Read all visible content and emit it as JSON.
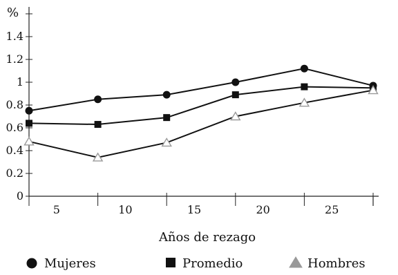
{
  "chart_data": {
    "type": "line",
    "title": "",
    "xlabel": "Años de rezago",
    "ylabel": "%",
    "x": [
      3,
      8,
      13,
      18,
      23,
      28
    ],
    "xticks": [
      "5",
      "10",
      "15",
      "20",
      "25"
    ],
    "xtick_values": [
      5,
      10,
      15,
      20,
      25
    ],
    "yticks": [
      "0",
      "0.2",
      "0.4",
      "0.6",
      "0.8",
      "1",
      "1.2",
      "1.4"
    ],
    "ytick_values": [
      0,
      0.2,
      0.4,
      0.6,
      0.8,
      1.0,
      1.2,
      1.4
    ],
    "xlim": [
      3,
      28
    ],
    "ylim": [
      0,
      1.6
    ],
    "grid": false,
    "legend_position": "bottom",
    "series": [
      {
        "name": "Mujeres",
        "marker": "circle",
        "color": "#111111",
        "values": [
          0.75,
          0.85,
          0.89,
          1.0,
          1.12,
          0.97
        ]
      },
      {
        "name": "Promedio",
        "marker": "square",
        "color": "#111111",
        "values": [
          0.64,
          0.63,
          0.69,
          0.89,
          0.96,
          0.95
        ]
      },
      {
        "name": "Hombres",
        "marker": "triangle",
        "color": "#999999",
        "values": [
          0.48,
          0.34,
          0.47,
          0.7,
          0.82,
          0.93
        ]
      }
    ]
  }
}
